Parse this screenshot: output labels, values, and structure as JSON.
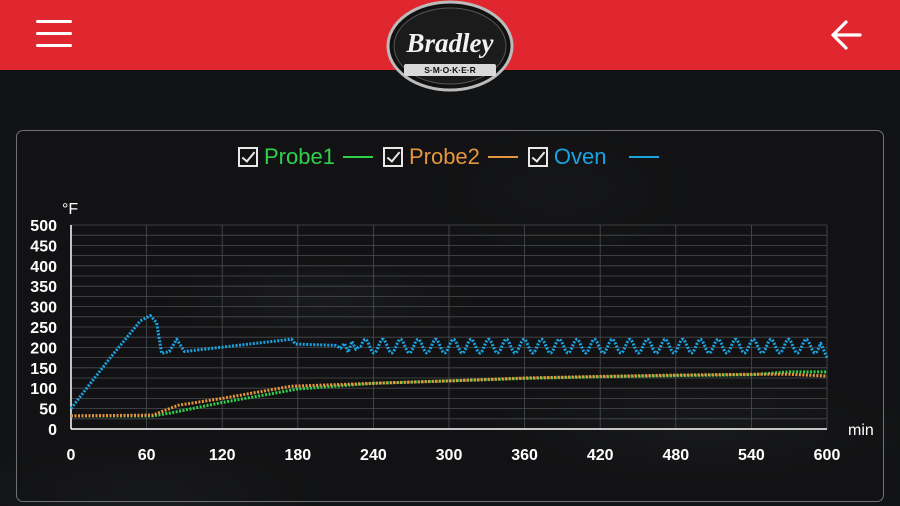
{
  "header": {
    "logo_text": "Bradley",
    "logo_subtext": "S·M·O·K·E·R",
    "bg_color": "#e0262e"
  },
  "icons": {
    "menu": "hamburger-menu-icon",
    "back": "arrow-left-icon",
    "checkbox": "checkbox-checked-icon"
  },
  "legend": [
    {
      "label": "Probe1",
      "color": "#2fd04a",
      "checked": true
    },
    {
      "label": "Probe2",
      "color": "#e6953e",
      "checked": true
    },
    {
      "label": "Oven",
      "color": "#1aa3e0",
      "checked": true
    }
  ],
  "chart_data": {
    "type": "line",
    "ylabel": "°F",
    "xlabel": "min",
    "xlim": [
      0,
      600
    ],
    "ylim": [
      0,
      500
    ],
    "x_ticks": [
      "0",
      "60",
      "120",
      "180",
      "240",
      "300",
      "360",
      "420",
      "480",
      "540",
      "600"
    ],
    "y_ticks": [
      "0",
      "25",
      "50",
      "75",
      "100",
      "125",
      "150",
      "175",
      "200",
      "225",
      "250",
      "275",
      "300",
      "325",
      "350",
      "375",
      "400",
      "425",
      "450",
      "475",
      "500"
    ],
    "y_tick_labels": [
      "0",
      "50",
      "100",
      "150",
      "200",
      "250",
      "300",
      "350",
      "400",
      "450",
      "500"
    ],
    "grid": true,
    "series": [
      {
        "name": "Probe1",
        "color": "#2fd04a",
        "points": [
          [
            0,
            32
          ],
          [
            65,
            32
          ],
          [
            80,
            40
          ],
          [
            120,
            65
          ],
          [
            180,
            98
          ],
          [
            240,
            112
          ],
          [
            300,
            118
          ],
          [
            360,
            124
          ],
          [
            420,
            128
          ],
          [
            480,
            131
          ],
          [
            540,
            133
          ],
          [
            570,
            140
          ],
          [
            600,
            140
          ]
        ]
      },
      {
        "name": "Probe2",
        "color": "#e6953e",
        "points": [
          [
            0,
            32
          ],
          [
            65,
            34
          ],
          [
            85,
            58
          ],
          [
            120,
            75
          ],
          [
            175,
            105
          ],
          [
            240,
            112
          ],
          [
            300,
            118
          ],
          [
            360,
            125
          ],
          [
            420,
            129
          ],
          [
            480,
            132
          ],
          [
            540,
            134
          ],
          [
            570,
            134
          ],
          [
            600,
            130
          ]
        ]
      },
      {
        "name": "Oven",
        "color": "#1aa3e0",
        "points": [
          [
            0,
            50
          ],
          [
            30,
            170
          ],
          [
            55,
            265
          ],
          [
            63,
            278
          ],
          [
            68,
            260
          ],
          [
            72,
            185
          ],
          [
            78,
            190
          ],
          [
            84,
            220
          ],
          [
            90,
            190
          ],
          [
            175,
            220
          ],
          [
            178,
            208
          ],
          [
            210,
            205
          ],
          [
            214,
            198
          ],
          [
            217,
            210
          ],
          [
            220,
            188
          ],
          [
            223,
            215
          ],
          [
            226,
            195
          ],
          [
            229,
            203
          ],
          [
            600,
            175
          ]
        ]
      }
    ],
    "oven_oscillation": {
      "from": 230,
      "to": 595,
      "center": 203,
      "amplitude": 17,
      "period": 14
    }
  }
}
